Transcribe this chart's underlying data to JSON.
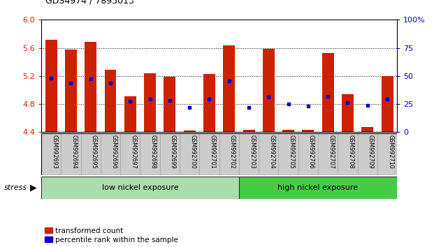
{
  "title": "GDS4974 / 7895013",
  "samples": [
    "GSM992693",
    "GSM992694",
    "GSM992695",
    "GSM992696",
    "GSM992697",
    "GSM992698",
    "GSM992699",
    "GSM992700",
    "GSM992701",
    "GSM992702",
    "GSM992703",
    "GSM992704",
    "GSM992705",
    "GSM992706",
    "GSM992707",
    "GSM992708",
    "GSM992709",
    "GSM992710"
  ],
  "red_bar_top": [
    5.72,
    5.58,
    5.69,
    5.29,
    4.91,
    5.24,
    5.19,
    4.42,
    5.23,
    5.64,
    4.43,
    5.59,
    4.43,
    4.43,
    5.53,
    4.94,
    4.47,
    5.2
  ],
  "blue_marker_y": [
    5.17,
    5.1,
    5.16,
    5.1,
    4.84,
    4.87,
    4.85,
    4.75,
    4.87,
    5.13,
    4.75,
    4.9,
    4.8,
    4.77,
    4.91,
    4.82,
    4.78,
    4.87
  ],
  "ymin": 4.4,
  "ymax": 6.0,
  "yticks_left": [
    4.4,
    4.8,
    5.2,
    5.6,
    6.0
  ],
  "yticks_right": [
    0,
    25,
    50,
    75,
    100
  ],
  "bar_base": 4.4,
  "bar_color": "#cc2200",
  "blue_color": "#0000cc",
  "bar_width": 0.6,
  "num_low": 10,
  "group_label_low": "low nickel exposure",
  "group_label_high": "high nickel exposure",
  "group_color_low": "#aaddaa",
  "group_color_high": "#44cc44",
  "tick_color_left": "#cc2200",
  "tick_color_right": "#0000cc",
  "stress_label": "stress",
  "legend_label_red": "transformed count",
  "legend_label_blue": "percentile rank within the sample",
  "label_bg_color": "#cccccc",
  "label_edge_color": "#999999"
}
